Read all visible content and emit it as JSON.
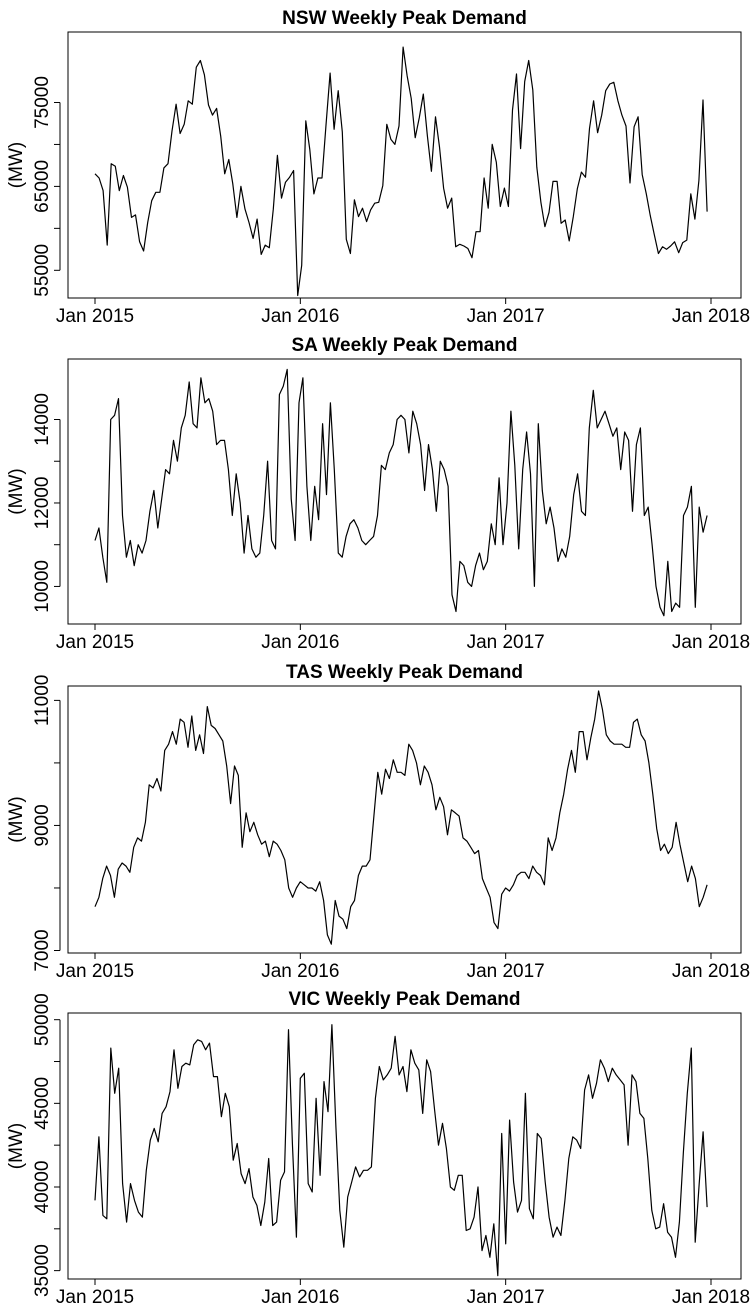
{
  "chart_data": [
    {
      "type": "line",
      "title": "NSW Weekly Peak Demand",
      "xlabel": "",
      "ylabel": "(MW)",
      "x_ticks": [
        "Jan 2015",
        "Jan 2016",
        "Jan 2017",
        "Jan 2018"
      ],
      "y_ticks": [
        55000,
        65000,
        75000
      ],
      "ylim": [
        51700,
        83400
      ],
      "x_start": "2015-01",
      "x_end": "2018-01",
      "grid": false,
      "series": [
        {
          "values": [
            66500,
            66000,
            64500,
            58000,
            67700,
            67400,
            64500,
            66300,
            64900,
            61300,
            61600,
            58400,
            57300,
            60700,
            63300,
            64300,
            64300,
            67200,
            67700,
            71600,
            74800,
            71300,
            72400,
            75200,
            74800,
            79200,
            80000,
            78300,
            74700,
            73500,
            74300,
            71000,
            66500,
            68200,
            65300,
            61300,
            65000,
            62300,
            60700,
            58800,
            61100,
            56900,
            58000,
            57700,
            62300,
            68700,
            63600,
            65500,
            66100,
            66900,
            52000,
            55600,
            72800,
            69400,
            64100,
            66000,
            66000,
            72300,
            78500,
            71800,
            76400,
            71500,
            58700,
            57000,
            63400,
            61400,
            62400,
            60800,
            62200,
            63000,
            63100,
            65100,
            72400,
            70600,
            70000,
            72200,
            81600,
            78200,
            75500,
            70800,
            73200,
            76000,
            71000,
            66800,
            73300,
            69700,
            64800,
            62400,
            63600,
            57800,
            58100,
            57900,
            57600,
            56500,
            59600,
            59600,
            66000,
            62400,
            70000,
            67900,
            62600,
            64800,
            62600,
            74100,
            78400,
            69500,
            77500,
            80000,
            76500,
            67300,
            63100,
            60200,
            61900,
            65600,
            65600,
            60600,
            61000,
            58500,
            61400,
            64700,
            66700,
            66100,
            71900,
            75200,
            71400,
            73500,
            76400,
            77200,
            77400,
            75200,
            73500,
            72200,
            65400,
            72100,
            73300,
            66400,
            64100,
            61500,
            59200,
            57000,
            57800,
            57500,
            57900,
            58400,
            57100,
            58300,
            58600,
            64100,
            61100,
            65700,
            75300,
            62000
          ]
        }
      ]
    },
    {
      "type": "line",
      "title": "SA Weekly Peak Demand",
      "xlabel": "",
      "ylabel": "(MW)",
      "x_ticks": [
        "Jan 2015",
        "Jan 2016",
        "Jan 2017",
        "Jan 2018"
      ],
      "y_ticks": [
        10000,
        12000,
        14000
      ],
      "ylim": [
        9100,
        15450
      ],
      "x_start": "2015-01",
      "x_end": "2018-01",
      "grid": false,
      "series": [
        {
          "values": [
            11100,
            11400,
            10700,
            10100,
            14000,
            14100,
            14500,
            11700,
            10700,
            11100,
            10500,
            11000,
            10800,
            11100,
            11800,
            12300,
            11400,
            12100,
            12800,
            12700,
            13500,
            13000,
            13800,
            14100,
            14900,
            13900,
            13800,
            15000,
            14400,
            14500,
            14200,
            13400,
            13500,
            13500,
            12800,
            11700,
            12700,
            12000,
            10800,
            11700,
            10900,
            10700,
            10800,
            11700,
            13000,
            11100,
            10900,
            14600,
            14800,
            15200,
            12100,
            11100,
            14400,
            15000,
            12400,
            11100,
            12400,
            11600,
            13900,
            12200,
            14400,
            12800,
            10800,
            10700,
            11200,
            11500,
            11600,
            11400,
            11100,
            11000,
            11100,
            11200,
            11700,
            12900,
            12800,
            13200,
            13400,
            14000,
            14100,
            14000,
            13200,
            14200,
            13900,
            13400,
            12300,
            13400,
            12800,
            11800,
            13000,
            12800,
            12400,
            9800,
            9400,
            10600,
            10500,
            10100,
            10000,
            10500,
            10800,
            10400,
            10600,
            11500,
            11000,
            12600,
            11000,
            12000,
            14200,
            12900,
            10900,
            12800,
            13700,
            12700,
            10000,
            13900,
            12300,
            11500,
            11900,
            11400,
            10600,
            10900,
            10700,
            11200,
            12200,
            12700,
            11800,
            11700,
            13800,
            14700,
            13800,
            14000,
            14200,
            13900,
            13600,
            13800,
            12800,
            13700,
            13500,
            11800,
            13400,
            13800,
            11700,
            11900,
            11000,
            10000,
            9500,
            9300,
            10600,
            9400,
            9600,
            9500,
            11700,
            11900,
            12400,
            9500,
            11900,
            11300,
            11700
          ]
        }
      ]
    },
    {
      "type": "line",
      "title": "TAS Weekly Peak Demand",
      "xlabel": "",
      "ylabel": "(MW)",
      "x_ticks": [
        "Jan 2015",
        "Jan 2016",
        "Jan 2017",
        "Jan 2018"
      ],
      "y_ticks": [
        7000,
        9000,
        11000
      ],
      "ylim": [
        6960,
        11230
      ],
      "x_start": "2015-01",
      "x_end": "2018-01",
      "grid": false,
      "series": [
        {
          "values": [
            7700,
            7850,
            8150,
            8350,
            8200,
            7850,
            8300,
            8400,
            8350,
            8250,
            8650,
            8800,
            8750,
            9050,
            9650,
            9600,
            9750,
            9550,
            10200,
            10300,
            10500,
            10300,
            10700,
            10650,
            10250,
            10750,
            10200,
            10450,
            10150,
            10900,
            10600,
            10550,
            10450,
            10350,
            9950,
            9350,
            9950,
            9800,
            8650,
            9200,
            8900,
            9050,
            8850,
            8700,
            8750,
            8500,
            8750,
            8700,
            8600,
            8450,
            8000,
            7850,
            8000,
            8100,
            8050,
            8000,
            8000,
            7950,
            8100,
            7800,
            7250,
            7100,
            7800,
            7550,
            7500,
            7350,
            7700,
            7800,
            8200,
            8350,
            8350,
            8450,
            9150,
            9850,
            9500,
            9900,
            9750,
            10050,
            9850,
            9850,
            9800,
            10300,
            10200,
            10000,
            9650,
            9950,
            9850,
            9650,
            9250,
            9450,
            9300,
            8850,
            9250,
            9200,
            9150,
            8800,
            8750,
            8650,
            8550,
            8600,
            8150,
            8000,
            7850,
            7450,
            7350,
            7900,
            8000,
            7950,
            8050,
            8200,
            8250,
            8250,
            8150,
            8350,
            8250,
            8200,
            8050,
            8800,
            8600,
            8800,
            9200,
            9500,
            9900,
            10200,
            9850,
            10500,
            10500,
            10050,
            10400,
            10700,
            11150,
            10850,
            10450,
            10350,
            10300,
            10300,
            10300,
            10250,
            10250,
            10650,
            10700,
            10450,
            10350,
            10000,
            9500,
            8950,
            8600,
            8700,
            8550,
            8650,
            9050,
            8700,
            8400,
            8100,
            8350,
            8150,
            7700,
            7850,
            8050
          ]
        }
      ]
    },
    {
      "type": "line",
      "title": "VIC Weekly Peak Demand",
      "xlabel": "",
      "ylabel": "(MW)",
      "x_ticks": [
        "Jan 2015",
        "Jan 2016",
        "Jan 2017",
        "Jan 2018"
      ],
      "y_ticks": [
        35000,
        40000,
        45000,
        50000
      ],
      "ylim": [
        34500,
        50400
      ],
      "x_start": "2015-01",
      "x_end": "2018-01",
      "grid": false,
      "series": [
        {
          "values": [
            39200,
            43000,
            38300,
            38100,
            48300,
            45600,
            47100,
            40200,
            37900,
            40200,
            39200,
            38500,
            38200,
            41000,
            42800,
            43500,
            42700,
            44400,
            44800,
            45700,
            48200,
            45900,
            47200,
            47400,
            47300,
            48500,
            48800,
            48700,
            48200,
            48600,
            46600,
            46600,
            44200,
            45600,
            44800,
            41600,
            42600,
            40800,
            40200,
            41100,
            39400,
            38900,
            37700,
            39100,
            41700,
            37700,
            37900,
            40400,
            40900,
            49400,
            42600,
            37000,
            46500,
            46800,
            40200,
            39700,
            45300,
            40700,
            46300,
            44500,
            49700,
            43600,
            38600,
            36400,
            39400,
            40300,
            41200,
            40600,
            41000,
            41000,
            41200,
            45300,
            47200,
            46400,
            46700,
            47100,
            49000,
            46700,
            47200,
            45700,
            48200,
            47400,
            47000,
            44400,
            47600,
            46900,
            44600,
            42500,
            43800,
            42300,
            40000,
            39800,
            40700,
            40700,
            37400,
            37500,
            38200,
            40000,
            36200,
            37100,
            35800,
            37800,
            34700,
            43200,
            36600,
            44000,
            40300,
            38500,
            39200,
            45600,
            38700,
            38100,
            43200,
            42900,
            40300,
            38200,
            37000,
            37600,
            37100,
            39200,
            41700,
            43000,
            42800,
            42300,
            45800,
            46700,
            45300,
            46200,
            47600,
            47100,
            46300,
            47100,
            46700,
            46400,
            46100,
            42500,
            46700,
            46300,
            44400,
            44100,
            41700,
            38600,
            37500,
            37600,
            39000,
            37300,
            37000,
            35800,
            37900,
            42100,
            45600,
            48300,
            36700,
            40200,
            43300,
            38800
          ]
        }
      ]
    }
  ]
}
